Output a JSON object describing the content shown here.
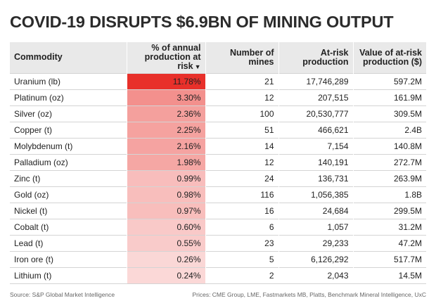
{
  "title": "COVID-19 DISRUPTS $6.9BN OF MINING OUTPUT",
  "colors": {
    "heat_max": "#e8302a",
    "heat_min": "#fdeeee",
    "header_bg": "#e9e9e9"
  },
  "chart_data": {
    "type": "table",
    "sorted_by": "pct_at_risk",
    "sort_direction": "descending",
    "columns": [
      {
        "key": "commodity",
        "label": "Commodity"
      },
      {
        "key": "pct",
        "label": "% of annual production at risk"
      },
      {
        "key": "mines",
        "label": "Number of mines"
      },
      {
        "key": "production",
        "label": "At-risk production"
      },
      {
        "key": "value",
        "label": "Value of at-risk production ($)"
      }
    ],
    "rows": [
      {
        "commodity": "Uranium (lb)",
        "pct_value": 11.78,
        "pct": "11.78%",
        "mines": "21",
        "production": "17,746,289",
        "value": "597.2M"
      },
      {
        "commodity": "Platinum (oz)",
        "pct_value": 3.3,
        "pct": "3.30%",
        "mines": "12",
        "production": "207,515",
        "value": "161.9M"
      },
      {
        "commodity": "Silver (oz)",
        "pct_value": 2.36,
        "pct": "2.36%",
        "mines": "100",
        "production": "20,530,777",
        "value": "309.5M"
      },
      {
        "commodity": "Copper (t)",
        "pct_value": 2.25,
        "pct": "2.25%",
        "mines": "51",
        "production": "466,621",
        "value": "2.4B"
      },
      {
        "commodity": "Molybdenum (t)",
        "pct_value": 2.16,
        "pct": "2.16%",
        "mines": "14",
        "production": "7,154",
        "value": "140.8M"
      },
      {
        "commodity": "Palladium (oz)",
        "pct_value": 1.98,
        "pct": "1.98%",
        "mines": "12",
        "production": "140,191",
        "value": "272.7M"
      },
      {
        "commodity": "Zinc (t)",
        "pct_value": 0.99,
        "pct": "0.99%",
        "mines": "24",
        "production": "136,731",
        "value": "263.9M"
      },
      {
        "commodity": "Gold (oz)",
        "pct_value": 0.98,
        "pct": "0.98%",
        "mines": "116",
        "production": "1,056,385",
        "value": "1.8B"
      },
      {
        "commodity": "Nickel (t)",
        "pct_value": 0.97,
        "pct": "0.97%",
        "mines": "16",
        "production": "24,684",
        "value": "299.5M"
      },
      {
        "commodity": "Cobalt (t)",
        "pct_value": 0.6,
        "pct": "0.60%",
        "mines": "6",
        "production": "1,057",
        "value": "31.2M"
      },
      {
        "commodity": "Lead (t)",
        "pct_value": 0.55,
        "pct": "0.55%",
        "mines": "23",
        "production": "29,233",
        "value": "47.2M"
      },
      {
        "commodity": "Iron ore (t)",
        "pct_value": 0.26,
        "pct": "0.26%",
        "mines": "5",
        "production": "6,126,292",
        "value": "517.7M"
      },
      {
        "commodity": "Lithium (t)",
        "pct_value": 0.24,
        "pct": "0.24%",
        "mines": "2",
        "production": "2,043",
        "value": "14.5M"
      }
    ]
  },
  "footer": {
    "source": "Source: S&P Global Market Intelligence",
    "prices": "Prices: CME Group, LME, Fastmarkets MB, Platts, Benchmark Mineral Intelligence, UxC"
  }
}
